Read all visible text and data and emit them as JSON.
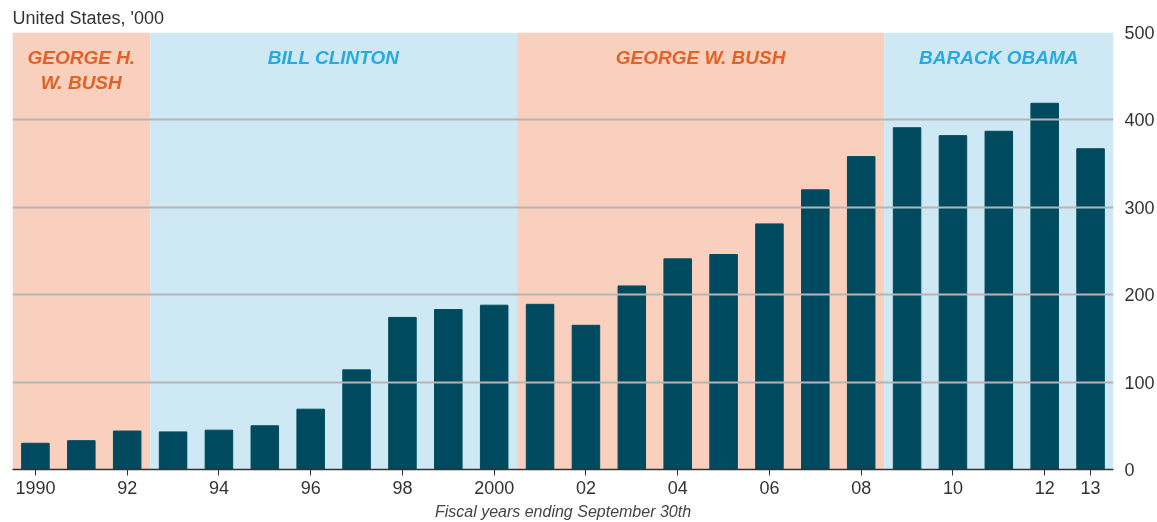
{
  "chart_data": {
    "type": "bar",
    "subtitle": "United States, '000",
    "xlabel": "Fiscal years ending September 30th",
    "x": [
      1990,
      1991,
      1992,
      1993,
      1994,
      1995,
      1996,
      1997,
      1998,
      1999,
      2000,
      2001,
      2002,
      2003,
      2004,
      2005,
      2006,
      2007,
      2008,
      2009,
      2010,
      2011,
      2012,
      2013
    ],
    "values": [
      30,
      33,
      44,
      43,
      45,
      50,
      69,
      114,
      174,
      183,
      188,
      189,
      165,
      210,
      241,
      246,
      281,
      320,
      358,
      391,
      382,
      387,
      419,
      367
    ],
    "color": "#004a60",
    "xlim": [
      1989.5,
      2013.5
    ],
    "xticks": [
      {
        "value": 1990,
        "label": "1990"
      },
      {
        "value": 1992,
        "label": "92"
      },
      {
        "value": 1994,
        "label": "94"
      },
      {
        "value": 1996,
        "label": "96"
      },
      {
        "value": 1998,
        "label": "98"
      },
      {
        "value": 2000,
        "label": "2000"
      },
      {
        "value": 2002,
        "label": "02"
      },
      {
        "value": 2004,
        "label": "04"
      },
      {
        "value": 2006,
        "label": "06"
      },
      {
        "value": 2008,
        "label": "08"
      },
      {
        "value": 2010,
        "label": "10"
      },
      {
        "value": 2012,
        "label": "12"
      },
      {
        "value": 2013,
        "label": "13"
      }
    ],
    "ylim": [
      0,
      500
    ],
    "yticks": [
      0,
      100,
      200,
      300,
      400,
      500
    ],
    "grid": "y",
    "bands": [
      {
        "axis": "x",
        "from": 1989.5,
        "to": 1992.5,
        "label": "GEORGE H.\nW. BUSH",
        "color": "#f9d0bd"
      },
      {
        "axis": "x",
        "from": 1992.5,
        "to": 2000.5,
        "label": "BILL CLINTON",
        "color": "#cfe9f4"
      },
      {
        "axis": "x",
        "from": 2000.5,
        "to": 2008.5,
        "label": "GEORGE W. BUSH",
        "color": "#f9d0bd"
      },
      {
        "axis": "x",
        "from": 2008.5,
        "to": 2013.5,
        "label": "BARACK OBAMA",
        "color": "#cfe9f4"
      }
    ]
  }
}
